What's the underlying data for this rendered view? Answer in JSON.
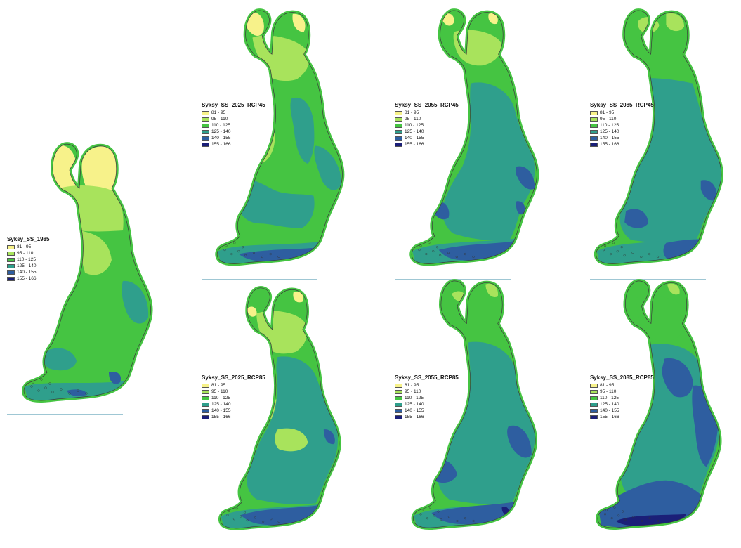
{
  "legend_classes": [
    {
      "label": "81 - 95",
      "color": "#f7f28a"
    },
    {
      "label": "95 - 110",
      "color": "#a8e35c"
    },
    {
      "label": "110 - 125",
      "color": "#45c442"
    },
    {
      "label": "125 - 140",
      "color": "#2f9f8c"
    },
    {
      "label": "140 - 155",
      "color": "#2e5ea0"
    },
    {
      "label": "155 - 166",
      "color": "#1b1f78"
    }
  ],
  "maps": [
    {
      "key": "baseline",
      "title": "Syksy_SS_1985"
    },
    {
      "key": "rcp45_2025",
      "title": "Syksy_SS_2025_RCP45"
    },
    {
      "key": "rcp45_2055",
      "title": "Syksy_SS_2055_RCP45"
    },
    {
      "key": "rcp45_2085",
      "title": "Syksy_SS_2085_RCP45"
    },
    {
      "key": "rcp85_2025",
      "title": "Syksy_SS_2025_RCP85"
    },
    {
      "key": "rcp85_2055",
      "title": "Syksy_SS_2055_RCP85"
    },
    {
      "key": "rcp85_2085",
      "title": "Syksy_SS_2085_RCP85"
    }
  ]
}
